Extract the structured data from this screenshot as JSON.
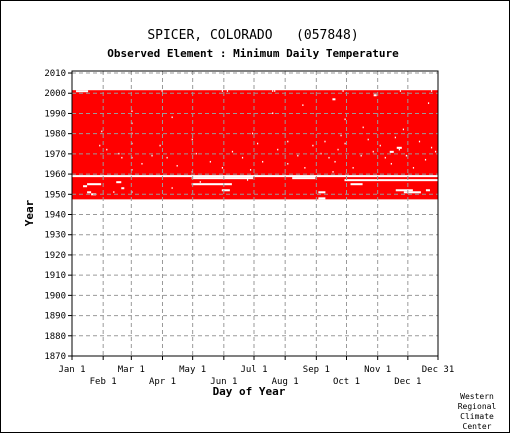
{
  "chart_data": {
    "type": "heatmap",
    "title": "SPICER, COLORADO   (057848)",
    "subtitle": "Observed Element : Minimum Daily Temperature",
    "xlabel": "Day of Year",
    "ylabel": "Year",
    "xlim": [
      1,
      365
    ],
    "ylim": [
      1870,
      2011
    ],
    "x_ticks_upper": [
      {
        "label": "Jan 1",
        "day": 1
      },
      {
        "label": "Mar 1",
        "day": 60
      },
      {
        "label": "May 1",
        "day": 121
      },
      {
        "label": "Jul 1",
        "day": 182
      },
      {
        "label": "Sep 1",
        "day": 244
      },
      {
        "label": "Nov 1",
        "day": 305
      },
      {
        "label": "Dec 31",
        "day": 365
      }
    ],
    "x_ticks_lower": [
      {
        "label": "Feb 1",
        "day": 32
      },
      {
        "label": "Apr 1",
        "day": 91
      },
      {
        "label": "Jun 1",
        "day": 152
      },
      {
        "label": "Aug 1",
        "day": 213
      },
      {
        "label": "Oct 1",
        "day": 274
      },
      {
        "label": "Dec 1",
        "day": 335
      }
    ],
    "y_ticks": [
      1870,
      1880,
      1890,
      1900,
      1910,
      1920,
      1930,
      1940,
      1950,
      1960,
      1970,
      1980,
      1990,
      2000,
      2010
    ],
    "grid": true,
    "data_color": "#ff0000",
    "data_period": {
      "start_year": 1947.5,
      "end_year": 2001.5
    },
    "missing_segments": [
      {
        "year": 1959,
        "start_day": 1,
        "end_day": 365
      },
      {
        "year": 1958,
        "start_day": 120,
        "end_day": 181
      },
      {
        "year": 1958,
        "start_day": 220,
        "end_day": 243
      },
      {
        "year": 1957,
        "start_day": 272,
        "end_day": 365
      },
      {
        "year": 1956,
        "start_day": 45,
        "end_day": 50
      },
      {
        "year": 1955,
        "start_day": 16,
        "end_day": 30
      },
      {
        "year": 1955,
        "start_day": 120,
        "end_day": 160
      },
      {
        "year": 1955,
        "start_day": 278,
        "end_day": 290
      },
      {
        "year": 1954,
        "start_day": 12,
        "end_day": 16
      },
      {
        "year": 1953,
        "start_day": 50,
        "end_day": 53
      },
      {
        "year": 1952,
        "start_day": 323,
        "end_day": 340
      },
      {
        "year": 1952,
        "start_day": 150,
        "end_day": 158
      },
      {
        "year": 1952,
        "start_day": 353,
        "end_day": 357
      },
      {
        "year": 1951,
        "start_day": 16,
        "end_day": 20
      },
      {
        "year": 1951,
        "start_day": 246,
        "end_day": 253
      },
      {
        "year": 1951,
        "start_day": 331,
        "end_day": 348
      },
      {
        "year": 1950,
        "start_day": 20,
        "end_day": 25
      },
      {
        "year": 1948,
        "start_day": 246,
        "end_day": 253
      },
      {
        "year": 2001,
        "start_day": 5,
        "end_day": 17
      },
      {
        "year": 1973,
        "start_day": 324,
        "end_day": 329
      },
      {
        "year": 1971,
        "start_day": 317,
        "end_day": 321
      },
      {
        "year": 1997,
        "start_day": 260,
        "end_day": 263
      },
      {
        "year": 1999,
        "start_day": 301,
        "end_day": 304
      }
    ],
    "missing_days": [
      [
        60,
        1991
      ],
      [
        60,
        1985
      ],
      [
        60,
        1980
      ],
      [
        60,
        1975
      ],
      [
        60,
        1968
      ],
      [
        60,
        1962
      ],
      [
        30,
        1981
      ],
      [
        28,
        1974
      ],
      [
        35,
        1972
      ],
      [
        47,
        1970
      ],
      [
        50,
        1968
      ],
      [
        70,
        1965
      ],
      [
        80,
        1969
      ],
      [
        88,
        1974
      ],
      [
        95,
        1968
      ],
      [
        105,
        1964
      ],
      [
        120,
        1961
      ],
      [
        124,
        1970
      ],
      [
        138,
        1966
      ],
      [
        150,
        1963
      ],
      [
        160,
        1971
      ],
      [
        170,
        1968
      ],
      [
        178,
        1962
      ],
      [
        185,
        1975
      ],
      [
        190,
        1966
      ],
      [
        205,
        1972
      ],
      [
        215,
        1965
      ],
      [
        225,
        1969
      ],
      [
        232,
        1963
      ],
      [
        240,
        1974
      ],
      [
        248,
        1970
      ],
      [
        252,
        1976
      ],
      [
        256,
        1968
      ],
      [
        262,
        1966
      ],
      [
        265,
        1972
      ],
      [
        268,
        1979
      ],
      [
        272,
        1975
      ],
      [
        280,
        1963
      ],
      [
        288,
        1969
      ],
      [
        295,
        1977
      ],
      [
        300,
        1971
      ],
      [
        307,
        1974
      ],
      [
        312,
        1968
      ],
      [
        318,
        1965
      ],
      [
        322,
        1978
      ],
      [
        326,
        1972
      ],
      [
        333,
        1969
      ],
      [
        340,
        1963
      ],
      [
        346,
        1976
      ],
      [
        352,
        1967
      ],
      [
        358,
        1973
      ],
      [
        362,
        1971
      ],
      [
        100,
        1988
      ],
      [
        200,
        1990
      ],
      [
        230,
        1994
      ],
      [
        272,
        1987
      ],
      [
        330,
        1982
      ],
      [
        355,
        1995
      ],
      [
        150,
        2001
      ],
      [
        155,
        2001
      ],
      [
        200,
        2001
      ],
      [
        202,
        2001
      ],
      [
        270,
        2001
      ],
      [
        327,
        2001
      ],
      [
        358,
        2001
      ],
      [
        90,
        2001
      ],
      [
        260,
        1961
      ],
      [
        215,
        1976
      ],
      [
        120,
        1977
      ],
      [
        180,
        1980
      ],
      [
        290,
        1983
      ],
      [
        60,
        1951
      ],
      [
        42,
        1951
      ],
      [
        100,
        1953
      ],
      [
        128,
        1956
      ],
      [
        175,
        1957
      ]
    ]
  },
  "credit": {
    "line1": "Western",
    "line2": "Regional",
    "line3": "Climate",
    "line4": "Center"
  }
}
